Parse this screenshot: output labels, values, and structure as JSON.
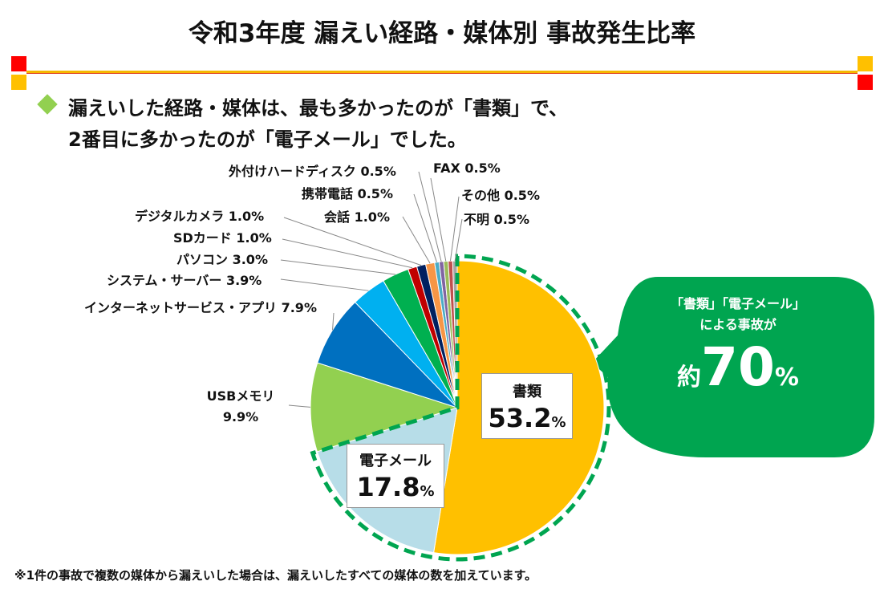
{
  "title": "令和3年度 漏えい経路・媒体別 事故発生比率",
  "lead": [
    "漏えいした経路・媒体は、最も多かったのが「書類」で、",
    "2番目に多かったのが「電子メール」でした。"
  ],
  "callout": {
    "line1": "「書類」「電子メール」",
    "line2": "による事故が",
    "prefix": "約",
    "value": "70",
    "unit": "%"
  },
  "footnote": "※1件の事故で複数の媒体から漏えいした場合は、漏えいしたすべての媒体の数を加えています。",
  "colors": {
    "accent_red": "#ff0000",
    "accent_yellow": "#ffc000",
    "highlight_green": "#00a550"
  },
  "chart_data": {
    "type": "pie",
    "start": "12 o'clock, clockwise",
    "slices": [
      {
        "label": "書類",
        "value": 53.2,
        "display": "53.2",
        "color": "#ffc000"
      },
      {
        "label": "電子メール",
        "value": 17.8,
        "display": "17.8",
        "color": "#b7dde8"
      },
      {
        "label": "USBメモリ",
        "value": 9.9,
        "display": "9.9%",
        "color": "#92d050"
      },
      {
        "label": "インターネットサービス・アプリ",
        "value": 7.9,
        "display": "7.9%",
        "color": "#0070c0"
      },
      {
        "label": "システム・サーバー",
        "value": 3.9,
        "display": "3.9%",
        "color": "#00b0f0"
      },
      {
        "label": "パソコン",
        "value": 3.0,
        "display": "3.0%",
        "color": "#00b050"
      },
      {
        "label": "SDカード",
        "value": 1.0,
        "display": "1.0%",
        "color": "#c00000"
      },
      {
        "label": "デジタルカメラ",
        "value": 1.0,
        "display": "1.0%",
        "color": "#002060"
      },
      {
        "label": "会話",
        "value": 1.0,
        "display": "1.0%",
        "color": "#f79646"
      },
      {
        "label": "携帯電話",
        "value": 0.5,
        "display": "0.5%",
        "color": "#4bacc6"
      },
      {
        "label": "外付けハードディスク",
        "value": 0.5,
        "display": "0.5%",
        "color": "#8064a2"
      },
      {
        "label": "FAX",
        "value": 0.5,
        "display": "0.5%",
        "color": "#9bbb59"
      },
      {
        "label": "その他",
        "value": 0.5,
        "display": "0.5%",
        "color": "#c0504d"
      },
      {
        "label": "不明",
        "value": 0.5,
        "display": "0.5%",
        "color": "#a5a5a5"
      }
    ]
  }
}
